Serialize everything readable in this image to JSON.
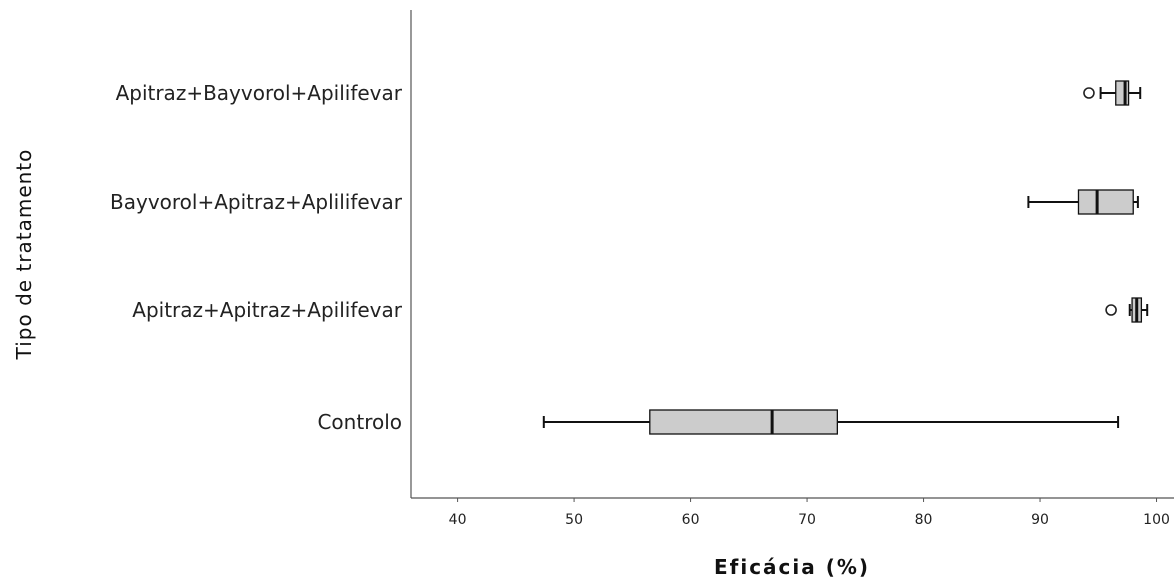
{
  "chart_data": {
    "type": "boxplot",
    "orientation": "horizontal",
    "xlabel": "Eficácia (%)",
    "ylabel": "Tipo de tratamento",
    "xlim": [
      36,
      101.5
    ],
    "xticks": [
      40,
      50,
      60,
      70,
      80,
      90,
      100
    ],
    "grid": false,
    "categories": [
      "Apitraz+Bayvorol+Apilifevar",
      "Bayvorol+Apitraz+Aplilifevar",
      "Apitraz+Apitraz+Apilifevar",
      "Controlo"
    ],
    "boxes": [
      {
        "whisker_low": 95.2,
        "q1": 96.5,
        "median": 97.3,
        "q3": 97.6,
        "whisker_high": 98.6,
        "outliers": [
          94.2
        ]
      },
      {
        "whisker_low": 89.0,
        "q1": 93.3,
        "median": 94.9,
        "q3": 98.0,
        "whisker_high": 98.4,
        "outliers": []
      },
      {
        "whisker_low": 97.7,
        "q1": 97.9,
        "median": 98.3,
        "q3": 98.7,
        "whisker_high": 99.2,
        "outliers": [
          96.1
        ]
      },
      {
        "whisker_low": 47.4,
        "q1": 56.5,
        "median": 67.0,
        "q3": 72.6,
        "whisker_high": 96.7,
        "outliers": []
      }
    ]
  }
}
